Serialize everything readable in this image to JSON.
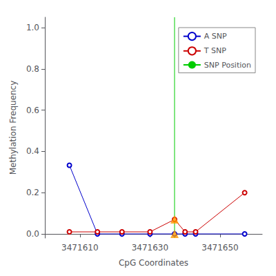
{
  "chart_data": {
    "type": "line",
    "xlabel": "CpG Coordinates",
    "ylabel": "Methylation Frequency",
    "x": [
      3471607,
      3471615,
      3471622,
      3471630,
      3471637,
      3471640,
      3471643,
      3471657
    ],
    "series": [
      {
        "name": "A SNP",
        "color": "#0000cc",
        "marker": "circle",
        "values": [
          0.333,
          0.0,
          0.0,
          0.0,
          0.0,
          0.0,
          0.0,
          0.0
        ]
      },
      {
        "name": "T SNP",
        "color": "#cc0000",
        "marker": "circle",
        "values": [
          0.01,
          0.01,
          0.01,
          0.01,
          0.07,
          0.01,
          0.01,
          0.2
        ]
      },
      {
        "name": "SNP Position",
        "type": "vline",
        "color": "#00cc00",
        "x": 3471637
      },
      {
        "type": "scatter",
        "marker": "triangle",
        "color": "#ff9900",
        "x": [
          3471637,
          3471637
        ],
        "values": [
          0.0,
          0.07
        ]
      }
    ],
    "xlim": [
      3471600,
      3471662
    ],
    "ylim": [
      -0.02,
      1.05
    ],
    "xticks": [
      3471610,
      3471630,
      3471650
    ],
    "yticks": [
      {
        "value": 0.0,
        "label": "0.0"
      },
      0.2,
      0.4,
      0.6,
      0.8,
      {
        "value": 1.0,
        "label": "1.0"
      }
    ],
    "grid": false,
    "legend": "upper right"
  }
}
